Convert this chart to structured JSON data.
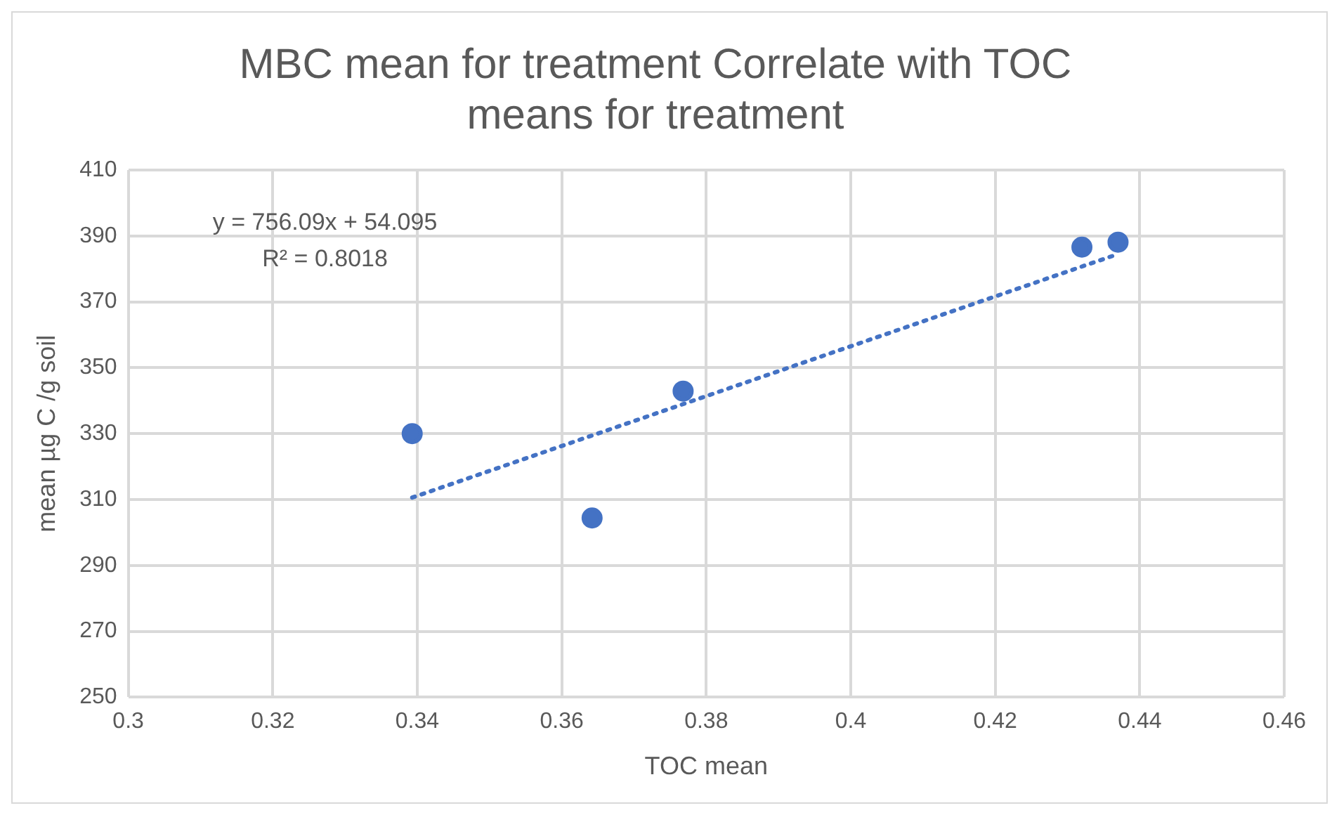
{
  "chart_data": {
    "type": "scatter",
    "title": "MBC mean for treatment Correlate with TOC means for treatment",
    "xlabel": "TOC mean",
    "ylabel": "mean µg C /g soil",
    "series": [
      {
        "type": "scatter",
        "color": "#4472c4",
        "x": [
          0.3393,
          0.3642,
          0.3768,
          0.432,
          0.437
        ],
        "values": [
          330,
          304.4,
          342.9,
          386.6,
          388.1
        ],
        "marker": "circle"
      },
      {
        "type": "line",
        "color": "#4472c4",
        "x": [
          0.3393,
          0.437
        ],
        "values": [
          310.6,
          384.5
        ],
        "line_style": "dotted",
        "marker": "none"
      }
    ],
    "annotations": [
      "y = 756.09x + 54.095",
      "R² = 0.8018"
    ],
    "xlim": [
      0.3,
      0.46
    ],
    "xticks": [
      0.3,
      0.32,
      0.34,
      0.36,
      0.38,
      0.4,
      0.42,
      0.44,
      0.46
    ],
    "ylim": [
      250,
      410
    ],
    "yticks": [
      250,
      270,
      290,
      310,
      330,
      350,
      370,
      390,
      410
    ],
    "grid": true,
    "legend": false
  }
}
